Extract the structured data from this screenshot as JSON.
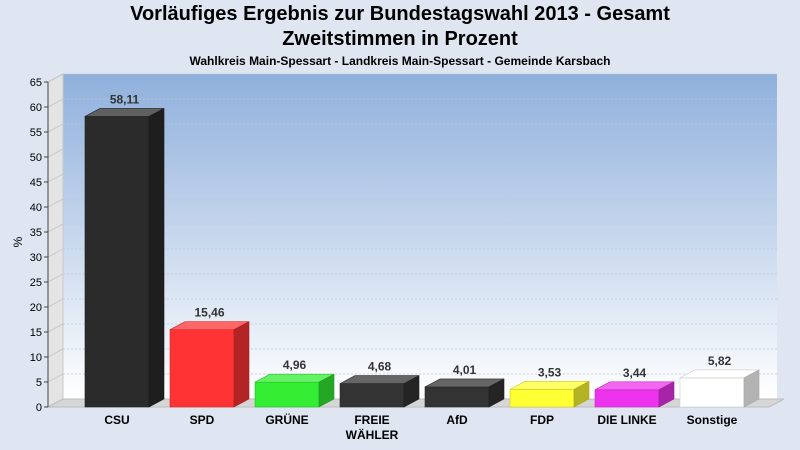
{
  "chart_data": {
    "type": "bar",
    "title": "Vorläufiges Ergebnis zur Bundestagswahl 2013 - Gesamt",
    "title_line2": "Zweitstimmen in Prozent",
    "subtitle": "Wahlkreis Main-Spessart - Landkreis Main-Spessart - Gemeinde Karsbach",
    "ylabel": "%",
    "ylim": [
      0,
      65
    ],
    "yticks": [
      0,
      5,
      10,
      15,
      20,
      25,
      30,
      35,
      40,
      45,
      50,
      55,
      60,
      65
    ],
    "grid": true,
    "categories": [
      "CSU",
      "SPD",
      "GRÜNE",
      "FREIE WÄHLER",
      "AfD",
      "FDP",
      "DIE LINKE",
      "Sonstige"
    ],
    "category_lines": [
      [
        "CSU"
      ],
      [
        "SPD"
      ],
      [
        "GRÜNE"
      ],
      [
        "FREIE",
        "WÄHLER"
      ],
      [
        "AfD"
      ],
      [
        "FDP"
      ],
      [
        "DIE LINKE"
      ],
      [
        "Sonstige"
      ]
    ],
    "values": [
      58.11,
      15.46,
      4.96,
      4.68,
      4.01,
      3.53,
      3.44,
      5.82
    ],
    "value_labels": [
      "58,11",
      "15,46",
      "4,96",
      "4,68",
      "4,01",
      "3,53",
      "3,44",
      "5,82"
    ],
    "colors": [
      "#2b2b2b",
      "#ff3333",
      "#33ee33",
      "#333333",
      "#333333",
      "#ffff33",
      "#ee33ee",
      "#ffffff"
    ]
  }
}
